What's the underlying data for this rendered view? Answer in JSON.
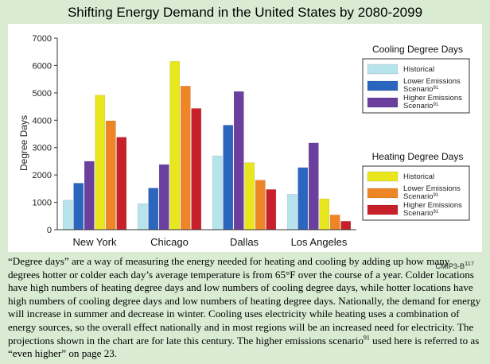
{
  "title": "Shifting Energy Demand in the United States by 2080-2099",
  "credit": {
    "text": "CMIP3-B",
    "sup": "117"
  },
  "caption": {
    "before_sup": "“Degree days” are a way of measuring the energy needed for heating and cooling by adding up how many degrees hotter or colder each day’s average temperature is from 65°F over the course of a year. Colder locations have high numbers of heating degree days and low numbers of cooling degree days, while hotter locations have high numbers of cooling degree days and low numbers of heating degree days. Nationally, the demand for energy will increase in summer and decrease in winter. Cooling uses electricity while heating uses a combination of energy sources, so the overall effect nationally and in most regions will be an increased need for electricity. The projections shown in the chart are for late this century. The higher emissions scenario",
    "sup": "91",
    "after_sup": " used here is referred to as “even higher” on page 23."
  },
  "chart_data": {
    "type": "bar",
    "ylabel": "Degree Days",
    "ylim": [
      0,
      7000
    ],
    "yticks": [
      "0",
      "1000",
      "2000",
      "3000",
      "4000",
      "5000",
      "6000",
      "7000"
    ],
    "grid": false,
    "categories": [
      "New York",
      "Chicago",
      "Dallas",
      "Los Angeles"
    ],
    "groups": [
      {
        "title": "Cooling Degree Days",
        "series": [
          {
            "name": "Historical",
            "color": "#b6e3ec",
            "values": [
              1080,
              950,
              2700,
              1300
            ]
          },
          {
            "name": "Lower Emissions Scenario",
            "sup": "91",
            "color": "#2a66be",
            "values": [
              1700,
              1520,
              3820,
              2270
            ]
          },
          {
            "name": "Higher Emissions Scenario",
            "sup": "91",
            "color": "#6a3f9e",
            "values": [
              2500,
              2380,
              5050,
              3170
            ]
          }
        ]
      },
      {
        "title": "Heating Degree Days",
        "series": [
          {
            "name": "Historical",
            "color": "#e8e61c",
            "values": [
              4920,
              6150,
              2450,
              1130
            ]
          },
          {
            "name": "Lower Emissions Scenario",
            "sup": "91",
            "color": "#ee8526",
            "values": [
              3980,
              5250,
              1810,
              540
            ]
          },
          {
            "name": "Higher Emissions Scenario",
            "sup": "91",
            "color": "#c8202a",
            "values": [
              3380,
              4430,
              1470,
              310
            ]
          }
        ]
      }
    ],
    "legend_placement": "right"
  }
}
